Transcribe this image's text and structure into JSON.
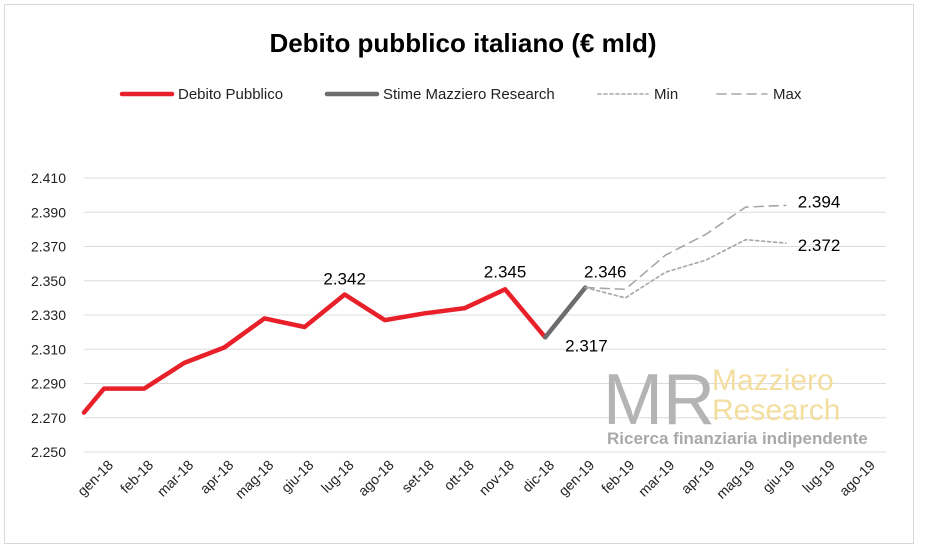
{
  "chart_data": {
    "type": "line",
    "title": "Debito pubblico italiano (€ mld)",
    "categories": [
      "gen-18",
      "feb-18",
      "mar-18",
      "apr-18",
      "mag-18",
      "giu-18",
      "lug-18",
      "ago-18",
      "set-18",
      "ott-18",
      "nov-18",
      "dic-18",
      "gen-19",
      "feb-19",
      "mar-19",
      "apr-19",
      "mag-19",
      "giu-19",
      "lug-19",
      "ago-19"
    ],
    "yticks": [
      "2.410",
      "2.390",
      "2.370",
      "2.350",
      "2.330",
      "2.310",
      "2.290",
      "2.270",
      "2.250"
    ],
    "ylim": [
      2250,
      2410
    ],
    "grid": true,
    "legend_position": "top",
    "series": [
      {
        "name": "Debito Pubblico",
        "color": "#e8202a",
        "style": "solid",
        "points": [
          [
            0,
            2273
          ],
          [
            0.5,
            2287
          ],
          [
            1.5,
            2287
          ],
          [
            2.5,
            2302
          ],
          [
            3.5,
            2311
          ],
          [
            4.5,
            2328
          ],
          [
            5.5,
            2323
          ],
          [
            6.5,
            2342
          ],
          [
            7.5,
            2327
          ],
          [
            8.5,
            2331
          ],
          [
            9.5,
            2334
          ],
          [
            10.5,
            2345
          ],
          [
            11.5,
            2317
          ]
        ]
      },
      {
        "name": "Stime Mazziero Research",
        "color": "#6d6d6d",
        "style": "solid",
        "points": [
          [
            11.5,
            2317
          ],
          [
            12.5,
            2346
          ]
        ]
      },
      {
        "name": "Min",
        "color": "#a6a6a6",
        "style": "dotted",
        "points": [
          [
            12.5,
            2346
          ],
          [
            13.5,
            2340
          ],
          [
            14.5,
            2355
          ],
          [
            15.5,
            2362
          ],
          [
            16.5,
            2374
          ],
          [
            17.5,
            2372
          ]
        ]
      },
      {
        "name": "Max",
        "color": "#a6a6a6",
        "style": "dashed",
        "points": [
          [
            12.5,
            2346
          ],
          [
            13.5,
            2345
          ],
          [
            14.5,
            2365
          ],
          [
            15.5,
            2377
          ],
          [
            16.5,
            2393
          ],
          [
            17.5,
            2394
          ]
        ]
      }
    ],
    "annotations": [
      {
        "text": "2.342",
        "x": 6.5,
        "y": 2342
      },
      {
        "text": "2.345",
        "x": 10.5,
        "y": 2345
      },
      {
        "text": "2.317",
        "x": 11.5,
        "y": 2317
      },
      {
        "text": "2.346",
        "x": 12.5,
        "y": 2346
      },
      {
        "text": "2.394",
        "x": 17.5,
        "y": 2394
      },
      {
        "text": "2.372",
        "x": 17.5,
        "y": 2372
      }
    ]
  },
  "watermark": {
    "logo": "MR",
    "line1": "Mazziero",
    "line2": "Research",
    "tagline": "Ricerca finanziaria indipendente"
  }
}
